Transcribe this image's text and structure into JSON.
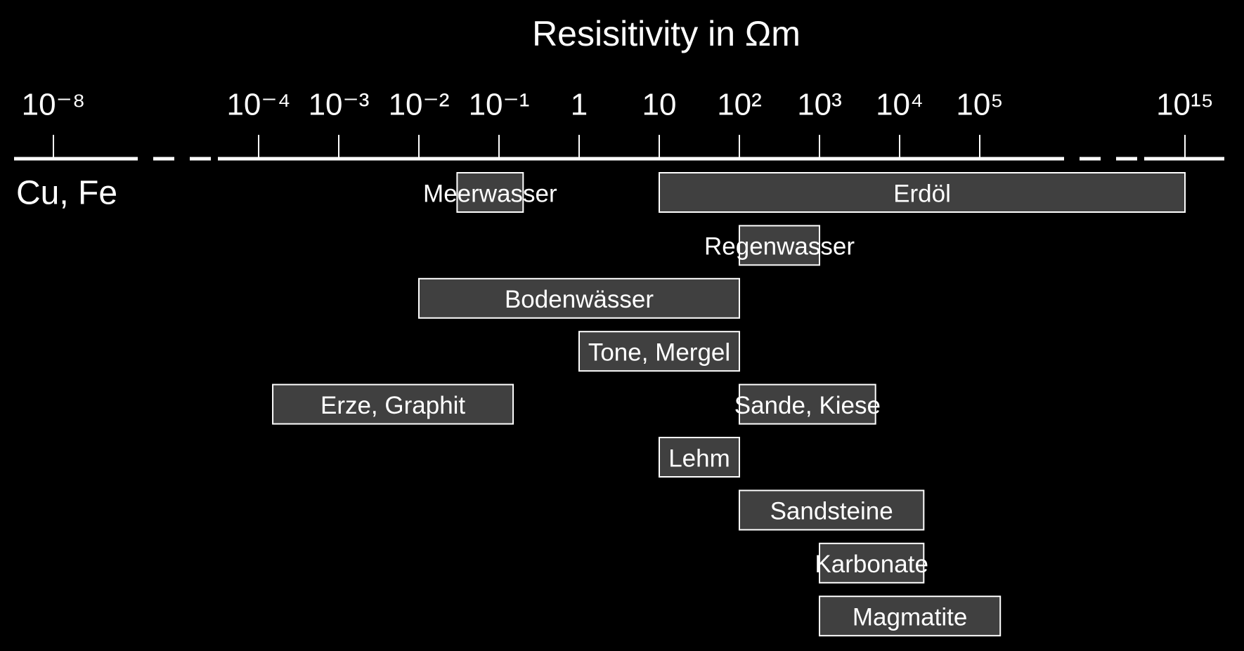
{
  "chart_data": {
    "type": "range",
    "title": "Resisitivity in Ωm",
    "xscale": "log",
    "xlim": [
      1e-08,
      1000000000000000.0
    ],
    "xticks": [
      {
        "value": 1e-08,
        "label": "10⁻⁸"
      },
      {
        "value": 0.0001,
        "label": "10⁻⁴"
      },
      {
        "value": 0.001,
        "label": "10⁻³"
      },
      {
        "value": 0.01,
        "label": "10⁻²"
      },
      {
        "value": 0.1,
        "label": "10⁻¹"
      },
      1,
      10,
      {
        "value": 100,
        "label": "10²"
      },
      {
        "value": 1000,
        "label": "10³"
      },
      {
        "value": 10000,
        "label": "10⁴"
      },
      {
        "value": 100000,
        "label": "10⁵"
      },
      {
        "value": 1000000000000000.0,
        "label": "10¹⁵"
      }
    ],
    "categories": [
      "Meerwasser",
      "Erdöl",
      "Regenwasser",
      "Bodenwässer",
      "Tone, Mergel",
      "Erze, Graphit",
      "Sande, Kiese",
      "Lehm",
      "Sandsteine",
      "Karbonate",
      "Magmatite"
    ],
    "ranges": [
      [
        0.03,
        0.2
      ],
      [
        10,
        1000000000000000.0
      ],
      [
        100,
        1000
      ],
      [
        0.01,
        100
      ],
      [
        1,
        100
      ],
      [
        0.00015,
        0.15
      ],
      [
        100,
        5000
      ],
      [
        10,
        100
      ],
      [
        100,
        20000
      ],
      [
        1000,
        20000
      ],
      [
        1000,
        1000000
      ]
    ],
    "annotations": [
      "Cu, Fe"
    ],
    "color": "#404040",
    "edge_color": "#ffffff"
  }
}
